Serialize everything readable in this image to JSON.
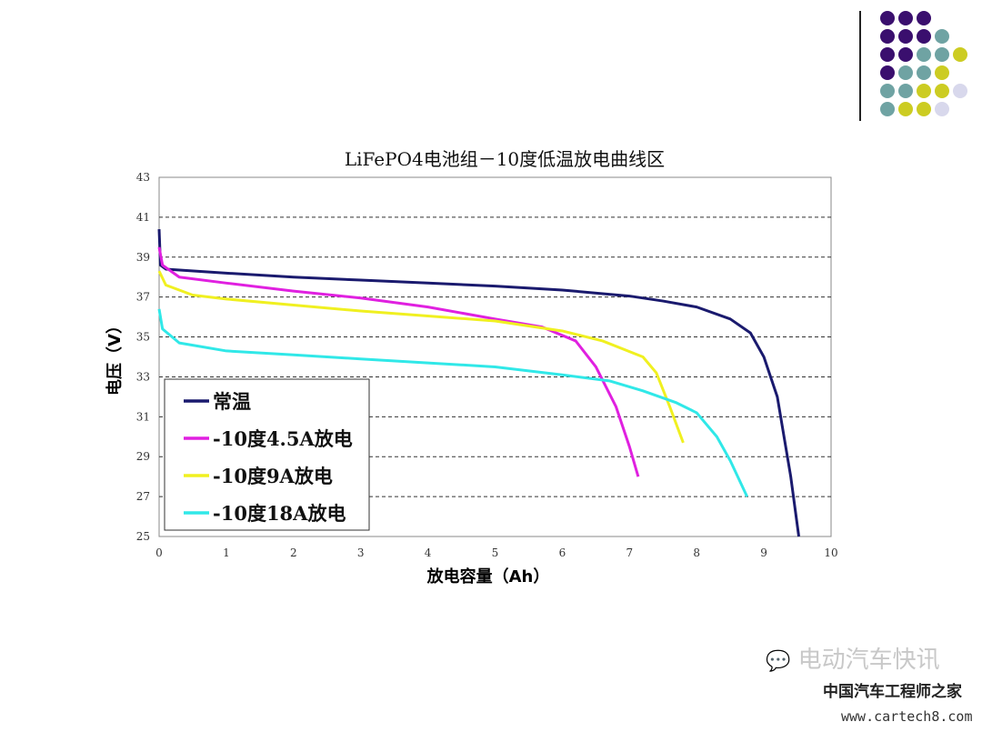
{
  "decor": {
    "dot_grid": [
      [
        "#3a0f6e",
        "#3a0f6e",
        "#3a0f6e",
        null,
        null
      ],
      [
        "#3a0f6e",
        "#3a0f6e",
        "#3a0f6e",
        "#6fa3a3",
        null
      ],
      [
        "#3a0f6e",
        "#3a0f6e",
        "#6fa3a3",
        "#6fa3a3",
        "#cccc22"
      ],
      [
        "#3a0f6e",
        "#6fa3a3",
        "#6fa3a3",
        "#cccc22",
        null
      ],
      [
        "#6fa3a3",
        "#6fa3a3",
        "#cccc22",
        "#cccc22",
        "#d8d8ec"
      ],
      [
        "#6fa3a3",
        "#cccc22",
        "#cccc22",
        "#d8d8ec",
        null
      ]
    ]
  },
  "watermark": {
    "source": "电动汽车快讯",
    "site_name": "中国汽车工程师之家",
    "url": "www.cartech8.com"
  },
  "chart_data": {
    "type": "line",
    "title": "LiFePO4电池组－10度低温放电曲线区",
    "xlabel": "放电容量（Ah）",
    "ylabel": "电压（V）",
    "xlim": [
      0,
      10
    ],
    "ylim": [
      25,
      43
    ],
    "xticks": [
      0,
      1,
      2,
      3,
      4,
      5,
      6,
      7,
      8,
      9,
      10
    ],
    "yticks": [
      25,
      27,
      29,
      31,
      33,
      35,
      37,
      39,
      41,
      43
    ],
    "grid": "horizontal dashed",
    "legend_position": "bottom-left",
    "series": [
      {
        "name": "常温",
        "color": "#1a1a6e",
        "points": [
          [
            0,
            40.4
          ],
          [
            0.02,
            38.6
          ],
          [
            0.1,
            38.4
          ],
          [
            1,
            38.2
          ],
          [
            2,
            38.0
          ],
          [
            3,
            37.85
          ],
          [
            4,
            37.7
          ],
          [
            5,
            37.55
          ],
          [
            6,
            37.35
          ],
          [
            7,
            37.05
          ],
          [
            7.5,
            36.8
          ],
          [
            8,
            36.5
          ],
          [
            8.5,
            35.9
          ],
          [
            8.8,
            35.2
          ],
          [
            9,
            34
          ],
          [
            9.2,
            32
          ],
          [
            9.4,
            28
          ],
          [
            9.52,
            25
          ]
        ]
      },
      {
        "name": "-10度4.5A放电",
        "color": "#e020e0",
        "points": [
          [
            0,
            39.5
          ],
          [
            0.05,
            38.6
          ],
          [
            0.3,
            38.0
          ],
          [
            1,
            37.7
          ],
          [
            2,
            37.3
          ],
          [
            3,
            36.95
          ],
          [
            4,
            36.5
          ],
          [
            5,
            35.9
          ],
          [
            5.7,
            35.5
          ],
          [
            6.2,
            34.8
          ],
          [
            6.5,
            33.5
          ],
          [
            6.8,
            31.5
          ],
          [
            7,
            29.5
          ],
          [
            7.13,
            28
          ]
        ]
      },
      {
        "name": "-10度9A放电",
        "color": "#f0f020",
        "points": [
          [
            0,
            38.3
          ],
          [
            0.1,
            37.6
          ],
          [
            0.5,
            37.1
          ],
          [
            1,
            36.9
          ],
          [
            2,
            36.6
          ],
          [
            3,
            36.3
          ],
          [
            4,
            36.05
          ],
          [
            5,
            35.8
          ],
          [
            6,
            35.3
          ],
          [
            6.6,
            34.8
          ],
          [
            7.2,
            34
          ],
          [
            7.4,
            33.2
          ],
          [
            7.6,
            31.5
          ],
          [
            7.8,
            29.7
          ]
        ]
      },
      {
        "name": "-10度18A放电",
        "color": "#30e8e8",
        "points": [
          [
            0,
            36.4
          ],
          [
            0.05,
            35.4
          ],
          [
            0.3,
            34.7
          ],
          [
            1,
            34.3
          ],
          [
            2,
            34.1
          ],
          [
            3,
            33.9
          ],
          [
            4,
            33.7
          ],
          [
            5,
            33.5
          ],
          [
            6,
            33.1
          ],
          [
            6.7,
            32.8
          ],
          [
            7.2,
            32.3
          ],
          [
            7.7,
            31.7
          ],
          [
            8,
            31.2
          ],
          [
            8.3,
            30.0
          ],
          [
            8.5,
            28.8
          ],
          [
            8.75,
            27
          ]
        ]
      }
    ]
  }
}
